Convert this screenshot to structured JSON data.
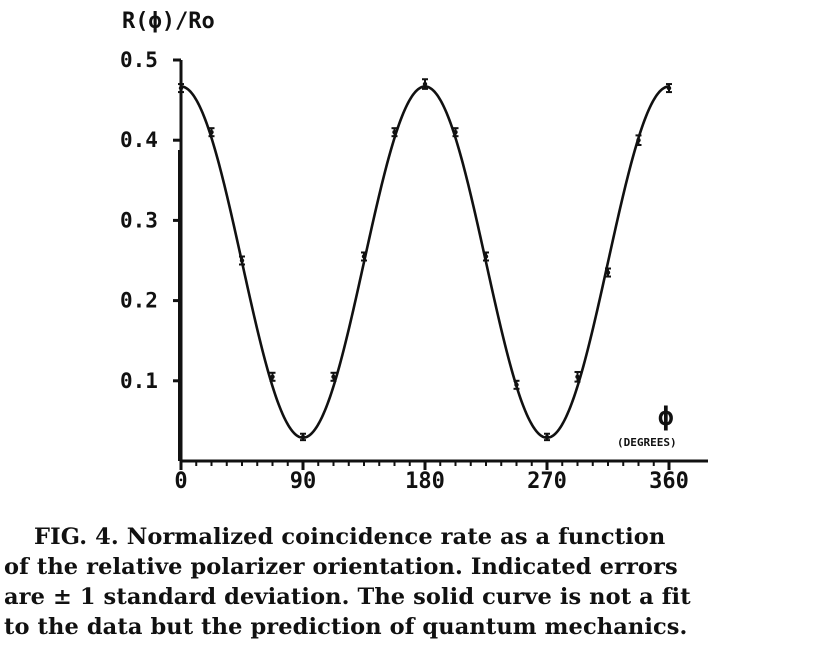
{
  "chart_data": {
    "type": "scatter",
    "y_axis_title": "R(ϕ)/Ro",
    "x_axis_title": "ϕ",
    "x_axis_unit": "(DEGREES)",
    "xlim": [
      0,
      360
    ],
    "ylim": [
      0,
      0.5
    ],
    "x_ticks": [
      0,
      90,
      180,
      270,
      360
    ],
    "x_tick_labels": [
      "0",
      "90",
      "180",
      "270",
      "360"
    ],
    "y_ticks": [
      0.1,
      0.2,
      0.3,
      0.4,
      0.5
    ],
    "y_tick_labels": [
      "0.1",
      "0.2",
      "0.3",
      "0.4",
      "0.5"
    ],
    "grid": false,
    "series": [
      {
        "kind": "data points with error bars",
        "x": [
          0,
          22.5,
          45,
          67.5,
          90,
          112.5,
          135,
          157.5,
          180,
          202.5,
          225,
          247.5,
          270,
          292.5,
          315,
          337.5,
          360
        ],
        "y": [
          0.465,
          0.41,
          0.25,
          0.105,
          0.03,
          0.105,
          0.255,
          0.41,
          0.47,
          0.41,
          0.255,
          0.095,
          0.03,
          0.105,
          0.235,
          0.4,
          0.465
        ],
        "error": [
          0.005,
          0.005,
          0.005,
          0.005,
          0.004,
          0.005,
          0.005,
          0.005,
          0.006,
          0.005,
          0.005,
          0.005,
          0.004,
          0.006,
          0.005,
          0.006,
          0.005
        ]
      },
      {
        "kind": "solid curve (quantum mechanics prediction)",
        "function": "0.248 + 0.219*cos(2*phi)"
      }
    ]
  },
  "caption": {
    "lines": [
      "FIG. 4.  Normalized coincidence rate as a function",
      "of the relative polarizer orientation.  Indicated errors",
      "are ± 1 standard deviation.  The solid curve is not a fit",
      "to the data but the prediction of quantum mechanics."
    ]
  }
}
